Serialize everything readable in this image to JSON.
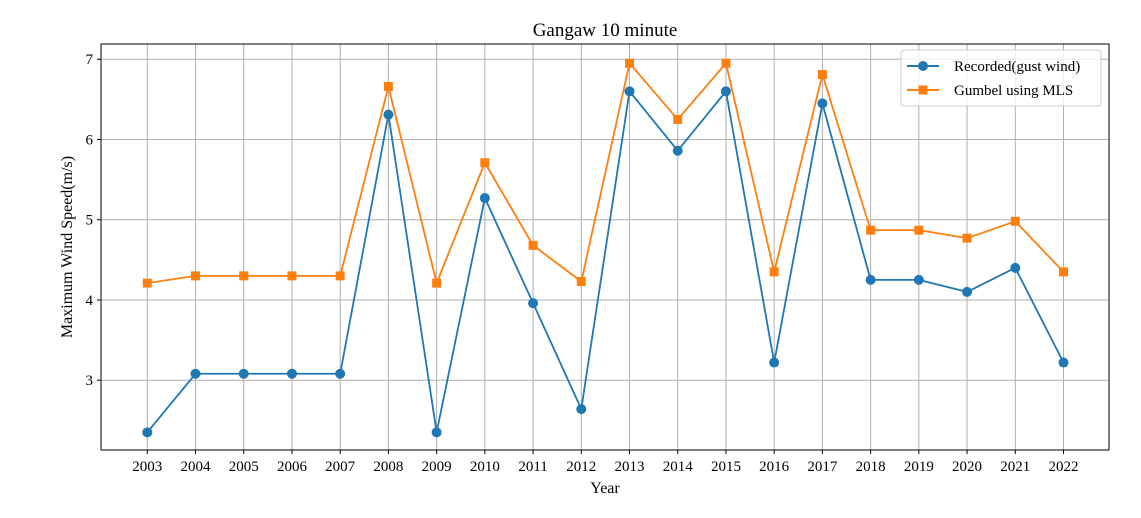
{
  "chart_data": {
    "type": "line",
    "title": "Gangaw 10 minute",
    "xlabel": "Year",
    "ylabel": "Maximum Wind Speed(m/s)",
    "categories": [
      "2003",
      "2004",
      "2005",
      "2006",
      "2007",
      "2008",
      "2009",
      "2010",
      "2011",
      "2012",
      "2013",
      "2014",
      "2015",
      "2016",
      "2017",
      "2018",
      "2019",
      "2020",
      "2021",
      "2022"
    ],
    "ylim": [
      2.13,
      7.19
    ],
    "yticks": [
      3,
      4,
      5,
      6,
      7
    ],
    "grid": true,
    "legend_position": "top-right",
    "series": [
      {
        "name": "Recorded(gust wind)",
        "color": "#1f77b4",
        "marker": "circle",
        "values": [
          2.35,
          3.08,
          3.08,
          3.08,
          3.08,
          6.31,
          2.35,
          5.27,
          3.96,
          2.64,
          6.6,
          5.86,
          6.6,
          3.22,
          6.45,
          4.25,
          4.25,
          4.1,
          4.4,
          3.22
        ]
      },
      {
        "name": "Gumbel using MLS",
        "color": "#ff7f0e",
        "marker": "square",
        "values": [
          4.21,
          4.3,
          4.3,
          4.3,
          4.3,
          6.66,
          4.21,
          5.71,
          4.68,
          4.23,
          6.95,
          6.25,
          6.95,
          4.35,
          6.81,
          4.87,
          4.87,
          4.77,
          4.98,
          4.35
        ]
      }
    ]
  }
}
